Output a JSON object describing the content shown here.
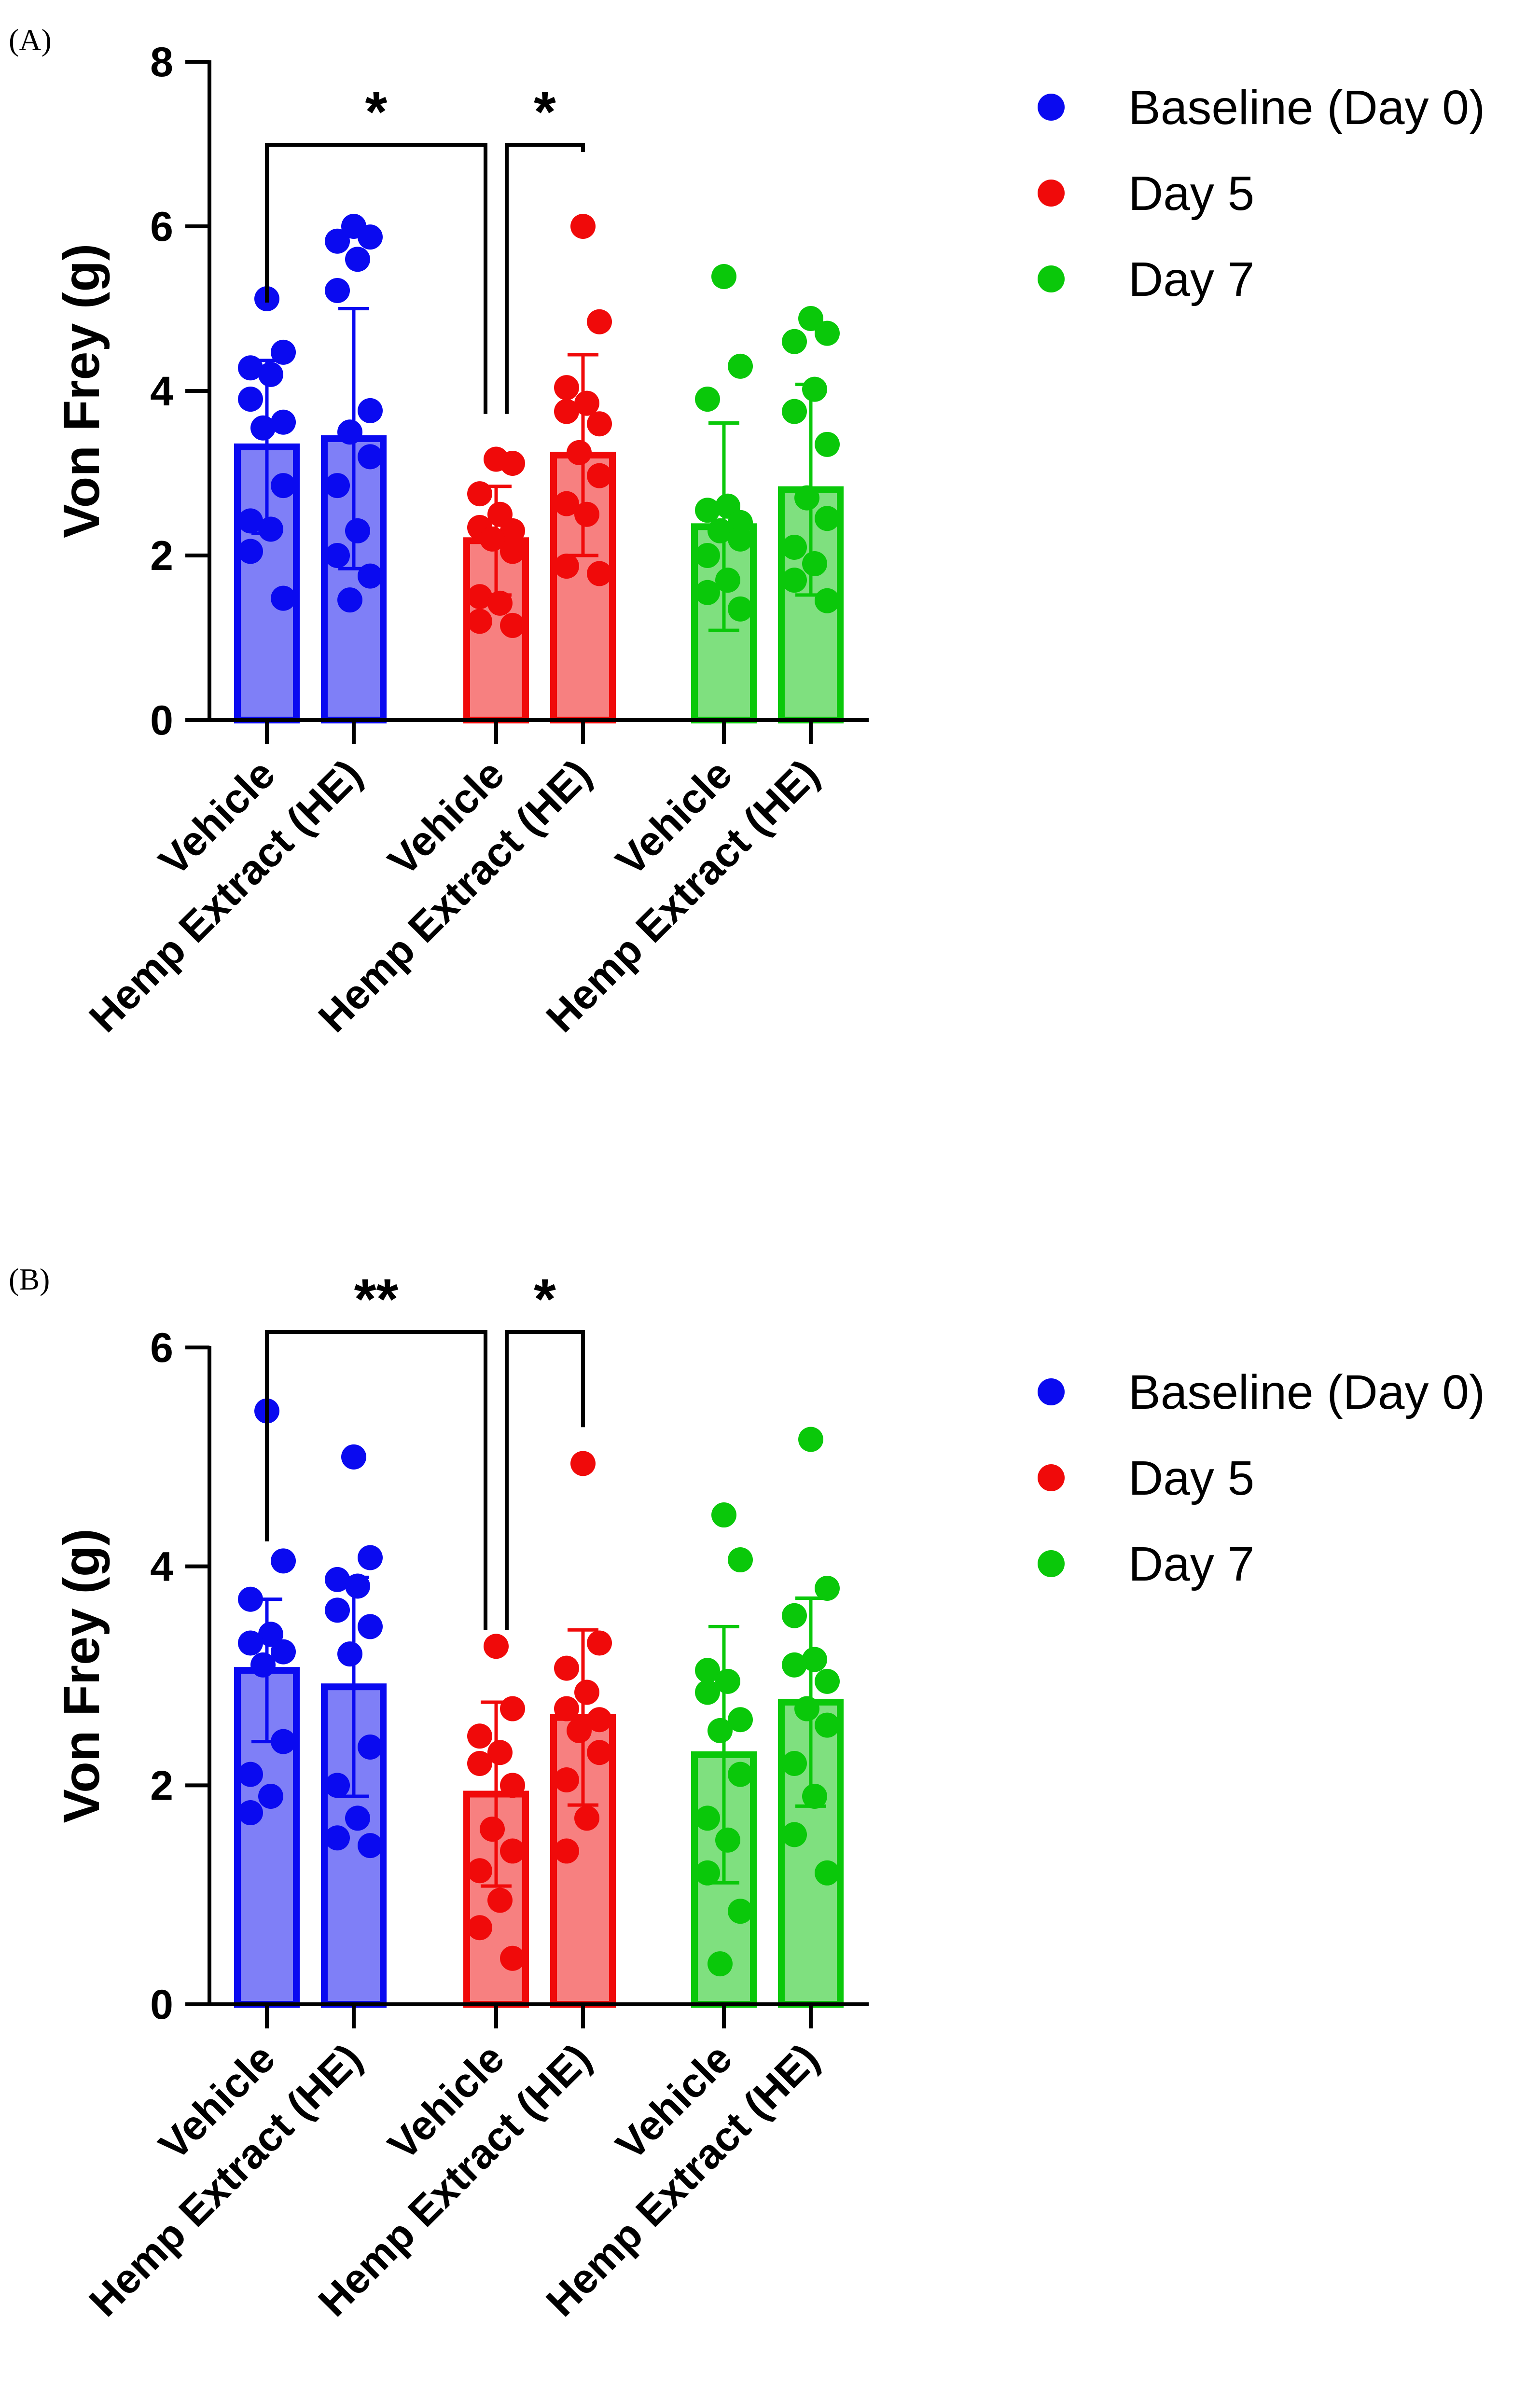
{
  "chart_data": [
    {
      "panel_label": "(A)",
      "type": "bar",
      "ylabel": "Von Frey (g)",
      "ylim": [
        0,
        8
      ],
      "yticks": [
        0,
        2,
        4,
        6,
        8
      ],
      "categories": [
        "Vehicle",
        "Hemp Extract (HE)"
      ],
      "legend": [
        "Baseline (Day 0)",
        "Day 5",
        "Day 7"
      ],
      "legend_position": "top-right",
      "series": [
        {
          "name": "Baseline (Day 0)",
          "color": "#0a0af0",
          "fill": "#7f7ff7",
          "means": [
            3.32,
            3.42
          ],
          "sd": [
            1.05,
            1.58
          ],
          "points": [
            [
              5.12,
              4.47,
              4.28,
              4.2,
              3.9,
              3.62,
              3.55,
              2.85,
              2.42,
              2.32,
              2.05,
              1.48
            ],
            [
              6.0,
              5.87,
              5.82,
              5.6,
              5.22,
              3.76,
              3.5,
              3.2,
              2.85,
              2.3,
              2.0,
              1.75,
              1.46
            ]
          ]
        },
        {
          "name": "Day 5",
          "color": "#f00a0a",
          "fill": "#f78080",
          "means": [
            2.18,
            3.22
          ],
          "sd": [
            0.66,
            1.22
          ],
          "points": [
            [
              3.17,
              3.12,
              2.75,
              2.5,
              2.34,
              2.3,
              2.2,
              2.05,
              1.5,
              1.42,
              1.2,
              1.15
            ],
            [
              6.0,
              4.84,
              4.04,
              3.85,
              3.75,
              3.6,
              3.25,
              2.97,
              2.63,
              2.5,
              1.87,
              1.78
            ]
          ]
        },
        {
          "name": "Day 7",
          "color": "#0ac80a",
          "fill": "#7fe07f",
          "means": [
            2.35,
            2.8
          ],
          "sd": [
            1.26,
            1.28
          ],
          "points": [
            [
              5.39,
              4.3,
              3.9,
              2.6,
              2.55,
              2.4,
              2.3,
              2.2,
              2.0,
              1.7,
              1.55,
              1.35
            ],
            [
              4.88,
              4.7,
              4.6,
              4.02,
              3.75,
              3.35,
              2.7,
              2.45,
              2.1,
              1.9,
              1.7,
              1.45
            ]
          ]
        }
      ],
      "significance": [
        {
          "label": "*",
          "from": "Baseline (Day 0) Vehicle",
          "to": "Day 5 Vehicle"
        },
        {
          "label": "*",
          "from": "Day 5 Vehicle",
          "to": "Day 5 Hemp Extract (HE)"
        }
      ]
    },
    {
      "panel_label": "(B)",
      "type": "bar",
      "ylabel": "Von Frey (g)",
      "ylim": [
        0,
        6
      ],
      "yticks": [
        0,
        2,
        4,
        6
      ],
      "categories": [
        "Vehicle",
        "Hemp Extract (HE)"
      ],
      "legend": [
        "Baseline (Day 0)",
        "Day 5",
        "Day 7"
      ],
      "legend_position": "top-right",
      "series": [
        {
          "name": "Baseline (Day 0)",
          "color": "#0a0af0",
          "fill": "#7f7ff7",
          "means": [
            3.05,
            2.9
          ],
          "sd": [
            0.65,
            1.0
          ],
          "points": [
            [
              5.42,
              4.05,
              3.7,
              3.38,
              3.3,
              3.22,
              3.1,
              2.4,
              2.1,
              1.9,
              1.75
            ],
            [
              5.0,
              4.08,
              3.88,
              3.82,
              3.6,
              3.45,
              3.2,
              2.35,
              2.0,
              1.7,
              1.52,
              1.45
            ]
          ]
        },
        {
          "name": "Day 5",
          "color": "#f00a0a",
          "fill": "#f78080",
          "means": [
            1.92,
            2.62
          ],
          "sd": [
            0.84,
            0.8
          ],
          "points": [
            [
              3.27,
              2.7,
              2.45,
              2.3,
              2.2,
              2.0,
              1.6,
              1.4,
              1.22,
              0.95,
              0.7,
              0.42
            ],
            [
              4.94,
              3.3,
              3.07,
              2.85,
              2.7,
              2.6,
              2.5,
              2.3,
              2.05,
              1.7,
              1.4
            ]
          ]
        },
        {
          "name": "Day 7",
          "color": "#0ac80a",
          "fill": "#7fe07f",
          "means": [
            2.28,
            2.76
          ],
          "sd": [
            1.17,
            0.95
          ],
          "points": [
            [
              4.47,
              4.06,
              3.05,
              2.95,
              2.85,
              2.6,
              2.5,
              2.1,
              1.7,
              1.5,
              1.2,
              0.85,
              0.37
            ],
            [
              5.16,
              3.8,
              3.55,
              3.15,
              3.1,
              2.95,
              2.7,
              2.55,
              2.2,
              1.9,
              1.55,
              1.2
            ]
          ]
        }
      ],
      "significance": [
        {
          "label": "**",
          "from": "Baseline (Day 0) Vehicle",
          "to": "Day 5 Vehicle"
        },
        {
          "label": "*",
          "from": "Day 5 Vehicle",
          "to": "Day 5 Hemp Extract (HE)"
        }
      ]
    }
  ]
}
